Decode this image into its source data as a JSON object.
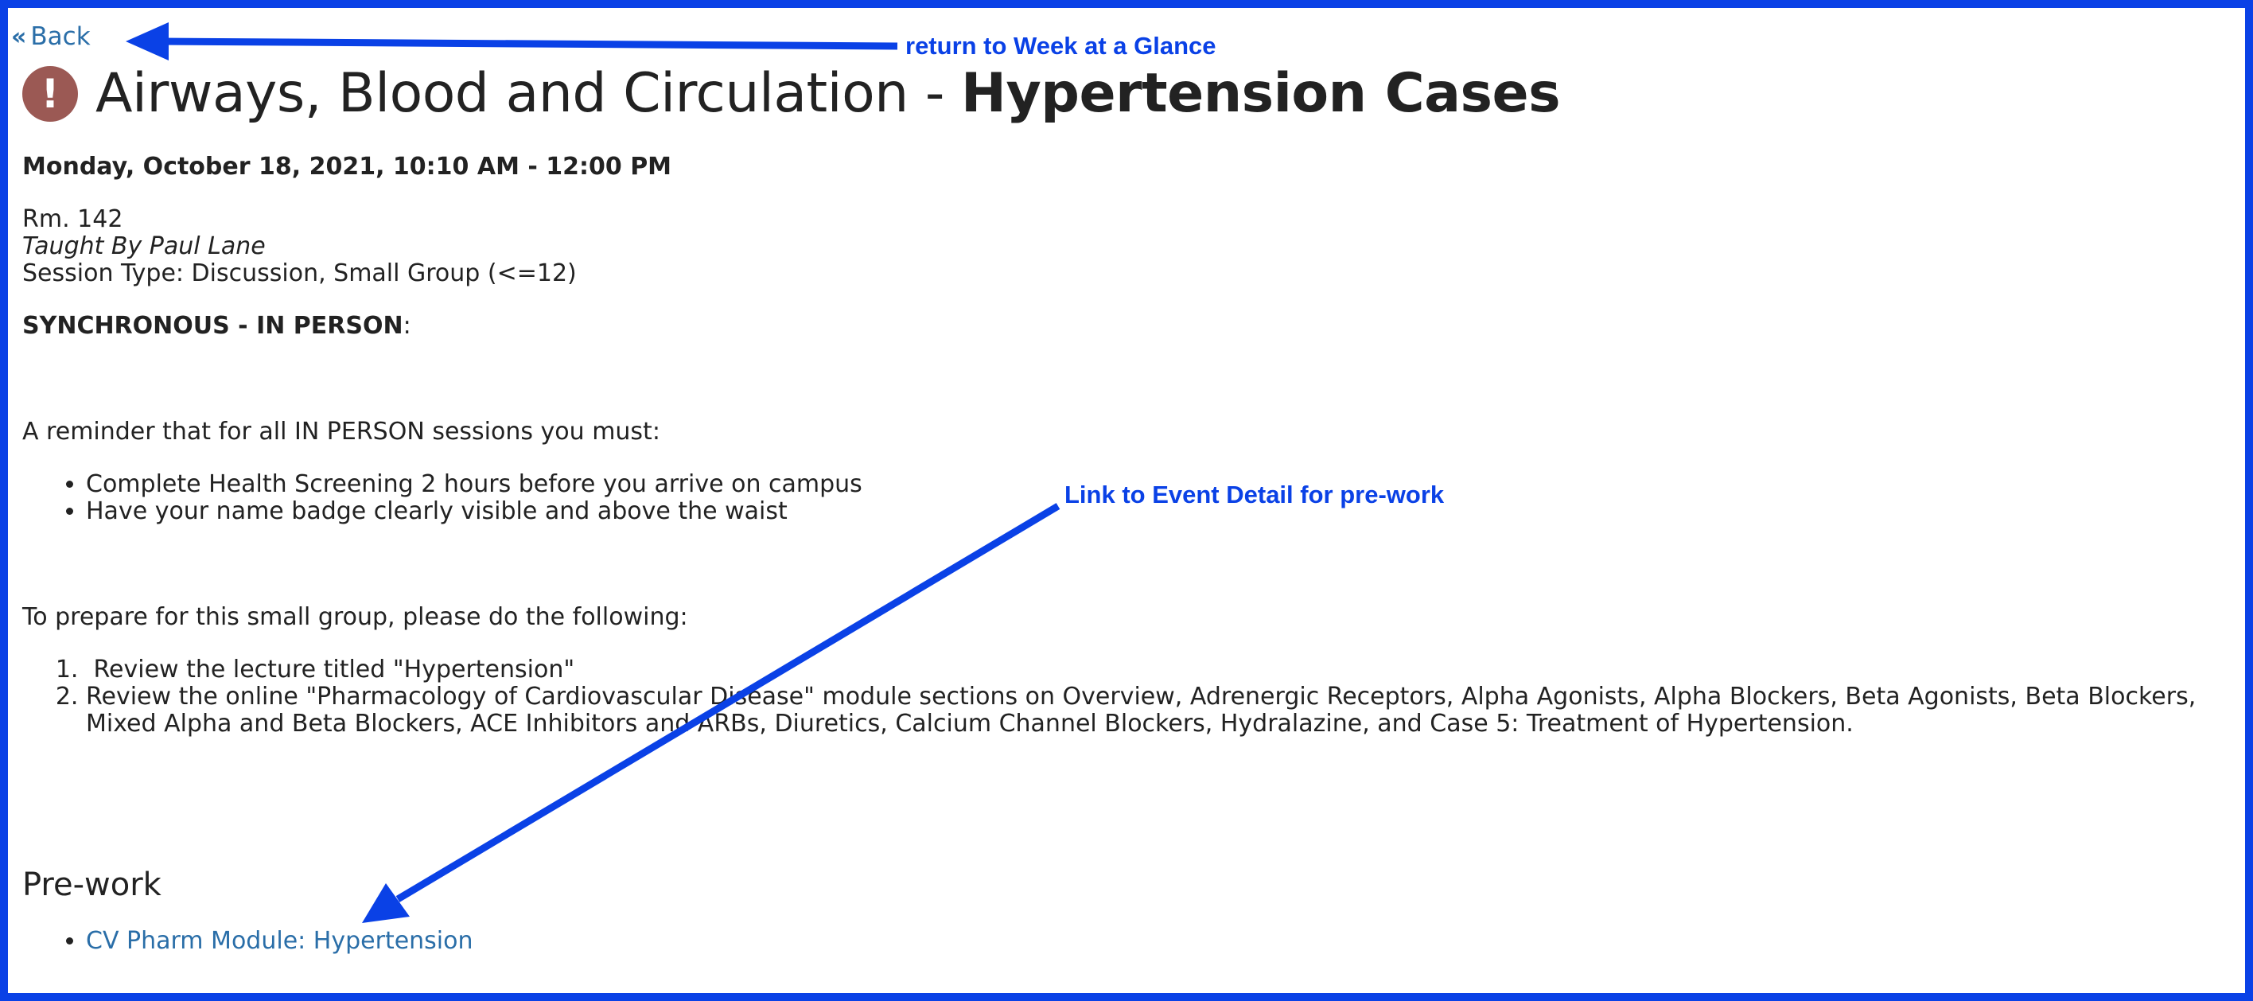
{
  "nav": {
    "back_label": "Back",
    "back_icon": "double-chevron-left-icon"
  },
  "event": {
    "alert_icon": "exclamation-circle-icon",
    "alert_glyph": "!",
    "title_prefix": "Airways, Blood and Circulation - ",
    "title_bold": "Hypertension Cases",
    "datetime": "Monday, October 18, 2021, 10:10 AM - 12:00 PM",
    "room": "Rm. 142",
    "taught_by": "Taught By Paul Lane",
    "session_type": "Session Type: Discussion, Small Group (<=12)",
    "sync_label": "SYNCHRONOUS - IN PERSON",
    "sync_suffix": ":",
    "reminder_intro": "A reminder that for all IN PERSON sessions you must:",
    "reminders": [
      "Complete Health Screening 2 hours before you arrive on campus",
      "Have your name badge clearly visible and above the waist"
    ],
    "prepare_intro": "To prepare for this small group, please do the following:",
    "steps": [
      " Review the lecture titled \"Hypertension\"",
      "Review the online \"Pharmacology of Cardiovascular Disease\" module sections on Overview, Adrenergic Receptors, Alpha Agonists, Alpha Blockers, Beta Agonists, Beta Blockers, Mixed Alpha and Beta Blockers, ACE Inhibitors and ARBs, Diuretics, Calcium Channel Blockers, Hydralazine, and Case 5: Treatment of Hypertension."
    ],
    "prework_heading": "Pre-work",
    "prework_links": [
      "CV Pharm Module: Hypertension"
    ]
  },
  "annotations": {
    "back_note": "return to Week at a Glance",
    "prework_note": "Link to Event Detail for pre-work"
  },
  "colors": {
    "frame": "#0a41e6",
    "link": "#2a6ea8",
    "alert": "#9b5954",
    "annotation": "#0a41e6"
  }
}
